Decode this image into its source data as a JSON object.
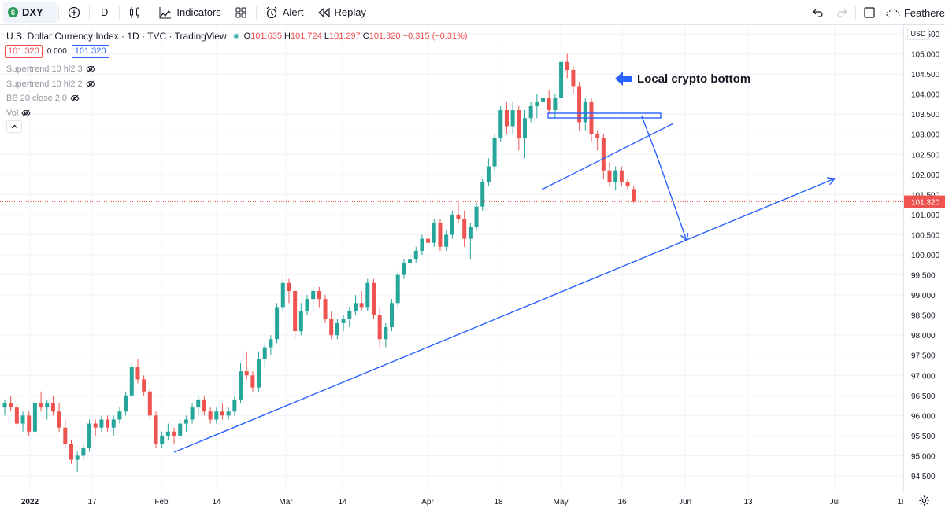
{
  "toolbar": {
    "symbol": "DXY",
    "symbol_badge": "$",
    "add_icon": "plus-circle-icon",
    "interval": "D",
    "indicators_label": "Indicators",
    "alert_label": "Alert",
    "replay_label": "Replay",
    "user_label": "Feathere"
  },
  "legend": {
    "title": "U.S. Dollar Currency Index · 1D · TVC · TradingView",
    "open_key": "O",
    "open": "101.635",
    "high_key": "H",
    "high": "101.724",
    "low_key": "L",
    "low": "101.297",
    "close_key": "C",
    "close": "101.320",
    "change": "−0.315 (−0.31%)",
    "price_box_sell": "101.320",
    "spread": "0.000",
    "price_box_buy": "101.320",
    "indicators": [
      "Supertrend 10 hl2 3",
      "Supertrend 10 hl2 2",
      "BB 20 close 2 0",
      "Vol"
    ]
  },
  "price_axis": {
    "currency": "USD",
    "ticks": [
      "105.500",
      "105.000",
      "104.500",
      "104.000",
      "103.500",
      "103.000",
      "102.500",
      "102.000",
      "101.500",
      "101.000",
      "100.500",
      "100.000",
      "99.500",
      "99.000",
      "98.500",
      "98.000",
      "97.500",
      "97.000",
      "96.500",
      "96.000",
      "95.500",
      "95.000",
      "94.500"
    ]
  },
  "time_axis": {
    "ticks": [
      "2022",
      "17",
      "Feb",
      "14",
      "Mar",
      "14",
      "Apr",
      "18",
      "May",
      "16",
      "Jun",
      "13",
      "Jul",
      "18"
    ]
  },
  "annotation": "Local crypto bottom",
  "colors": {
    "up": "#26a69a",
    "down": "#ef5350",
    "drawing": "#2962ff"
  },
  "chart_data": {
    "type": "candlestick",
    "symbol": "DXY",
    "interval": "1D",
    "ylim": [
      94.2,
      105.8
    ],
    "last_price": 101.32,
    "candles": [
      [
        96.2,
        96.4,
        96.0,
        96.3
      ],
      [
        96.3,
        96.5,
        96.1,
        96.2
      ],
      [
        96.2,
        96.3,
        95.7,
        95.8
      ],
      [
        95.8,
        96.1,
        95.6,
        96.0
      ],
      [
        96.0,
        96.1,
        95.5,
        95.6
      ],
      [
        95.6,
        96.4,
        95.5,
        96.3
      ],
      [
        96.3,
        96.6,
        96.1,
        96.2
      ],
      [
        96.2,
        96.4,
        95.9,
        96.3
      ],
      [
        96.3,
        96.5,
        96.0,
        96.1
      ],
      [
        96.1,
        96.3,
        95.6,
        95.7
      ],
      [
        95.7,
        95.9,
        95.2,
        95.3
      ],
      [
        95.3,
        95.4,
        94.8,
        94.9
      ],
      [
        94.9,
        95.1,
        94.6,
        95.0
      ],
      [
        95.0,
        95.3,
        94.9,
        95.2
      ],
      [
        95.2,
        95.9,
        95.1,
        95.8
      ],
      [
        95.8,
        95.9,
        95.5,
        95.7
      ],
      [
        95.7,
        96.0,
        95.6,
        95.9
      ],
      [
        95.9,
        96.0,
        95.6,
        95.7
      ],
      [
        95.7,
        96.0,
        95.5,
        95.9
      ],
      [
        95.9,
        96.2,
        95.8,
        96.1
      ],
      [
        96.1,
        96.6,
        96.0,
        96.5
      ],
      [
        96.5,
        97.3,
        96.4,
        97.2
      ],
      [
        97.2,
        97.4,
        96.8,
        96.9
      ],
      [
        96.9,
        97.0,
        96.5,
        96.6
      ],
      [
        96.6,
        96.7,
        95.9,
        96.0
      ],
      [
        96.0,
        96.1,
        95.2,
        95.3
      ],
      [
        95.3,
        95.6,
        95.2,
        95.5
      ],
      [
        95.5,
        95.8,
        95.4,
        95.6
      ],
      [
        95.6,
        95.7,
        95.3,
        95.5
      ],
      [
        95.5,
        95.9,
        95.4,
        95.8
      ],
      [
        95.8,
        96.0,
        95.6,
        95.9
      ],
      [
        95.9,
        96.3,
        95.8,
        96.2
      ],
      [
        96.2,
        96.5,
        96.0,
        96.4
      ],
      [
        96.4,
        96.5,
        96.0,
        96.1
      ],
      [
        96.1,
        96.2,
        95.8,
        95.9
      ],
      [
        95.9,
        96.2,
        95.8,
        96.1
      ],
      [
        96.1,
        96.3,
        95.9,
        96.0
      ],
      [
        96.0,
        96.2,
        95.9,
        96.1
      ],
      [
        96.1,
        96.5,
        96.0,
        96.4
      ],
      [
        96.4,
        97.3,
        96.3,
        97.1
      ],
      [
        97.1,
        97.6,
        96.9,
        97.0
      ],
      [
        97.0,
        97.1,
        96.6,
        96.7
      ],
      [
        96.7,
        97.6,
        96.6,
        97.4
      ],
      [
        97.4,
        97.8,
        97.2,
        97.7
      ],
      [
        97.7,
        98.0,
        97.5,
        97.9
      ],
      [
        97.9,
        98.8,
        97.8,
        98.7
      ],
      [
        98.7,
        99.4,
        98.6,
        99.3
      ],
      [
        99.3,
        99.4,
        98.8,
        99.1
      ],
      [
        99.1,
        99.2,
        97.9,
        98.1
      ],
      [
        98.1,
        98.8,
        98.0,
        98.6
      ],
      [
        98.6,
        99.0,
        98.5,
        98.9
      ],
      [
        98.9,
        99.2,
        98.6,
        99.1
      ],
      [
        99.1,
        99.2,
        98.7,
        98.9
      ],
      [
        98.9,
        99.0,
        98.3,
        98.4
      ],
      [
        98.4,
        98.6,
        97.9,
        98.0
      ],
      [
        98.0,
        98.4,
        97.9,
        98.3
      ],
      [
        98.3,
        98.5,
        98.1,
        98.4
      ],
      [
        98.4,
        98.7,
        98.2,
        98.6
      ],
      [
        98.6,
        99.0,
        98.5,
        98.8
      ],
      [
        98.8,
        99.1,
        98.6,
        98.7
      ],
      [
        98.7,
        99.4,
        98.6,
        99.3
      ],
      [
        99.3,
        99.4,
        98.4,
        98.5
      ],
      [
        98.5,
        98.7,
        97.7,
        97.9
      ],
      [
        97.9,
        98.3,
        97.7,
        98.2
      ],
      [
        98.2,
        98.9,
        98.1,
        98.8
      ],
      [
        98.8,
        99.6,
        98.7,
        99.5
      ],
      [
        99.5,
        99.9,
        99.4,
        99.8
      ],
      [
        99.8,
        100.0,
        99.6,
        99.9
      ],
      [
        99.9,
        100.2,
        99.8,
        100.1
      ],
      [
        100.1,
        100.5,
        100.0,
        100.4
      ],
      [
        100.4,
        100.7,
        100.2,
        100.3
      ],
      [
        100.3,
        100.9,
        100.2,
        100.8
      ],
      [
        100.8,
        100.9,
        100.1,
        100.2
      ],
      [
        100.2,
        100.6,
        100.1,
        100.5
      ],
      [
        100.5,
        101.1,
        100.4,
        101.0
      ],
      [
        101.0,
        101.3,
        100.8,
        100.9
      ],
      [
        100.9,
        101.1,
        100.2,
        100.4
      ],
      [
        100.4,
        100.8,
        99.9,
        100.7
      ],
      [
        100.7,
        101.3,
        100.6,
        101.2
      ],
      [
        101.2,
        101.9,
        101.1,
        101.8
      ],
      [
        101.8,
        102.4,
        101.7,
        102.2
      ],
      [
        102.2,
        103.0,
        102.1,
        102.9
      ],
      [
        102.9,
        103.7,
        102.8,
        103.6
      ],
      [
        103.6,
        103.8,
        103.0,
        103.2
      ],
      [
        103.2,
        103.8,
        103.0,
        103.6
      ],
      [
        103.6,
        103.7,
        102.6,
        102.9
      ],
      [
        102.9,
        103.6,
        102.4,
        103.4
      ],
      [
        103.4,
        103.8,
        103.3,
        103.7
      ],
      [
        103.7,
        104.0,
        103.4,
        103.8
      ],
      [
        103.8,
        104.2,
        103.5,
        103.9
      ],
      [
        103.9,
        104.1,
        103.5,
        103.6
      ],
      [
        103.6,
        104.0,
        103.4,
        103.9
      ],
      [
        103.9,
        104.9,
        103.8,
        104.8
      ],
      [
        104.8,
        105.0,
        104.4,
        104.6
      ],
      [
        104.6,
        104.7,
        104.0,
        104.2
      ],
      [
        104.2,
        104.3,
        103.1,
        103.3
      ],
      [
        103.3,
        103.9,
        103.1,
        103.8
      ],
      [
        103.8,
        103.9,
        102.8,
        103.0
      ],
      [
        103.0,
        103.1,
        102.6,
        102.9
      ],
      [
        102.9,
        103.0,
        101.9,
        102.1
      ],
      [
        102.1,
        102.3,
        101.7,
        101.8
      ],
      [
        101.8,
        102.2,
        101.6,
        102.1
      ],
      [
        102.1,
        102.2,
        101.7,
        101.8
      ],
      [
        101.8,
        101.9,
        101.6,
        101.7
      ],
      [
        101.635,
        101.724,
        101.297,
        101.32
      ]
    ]
  }
}
